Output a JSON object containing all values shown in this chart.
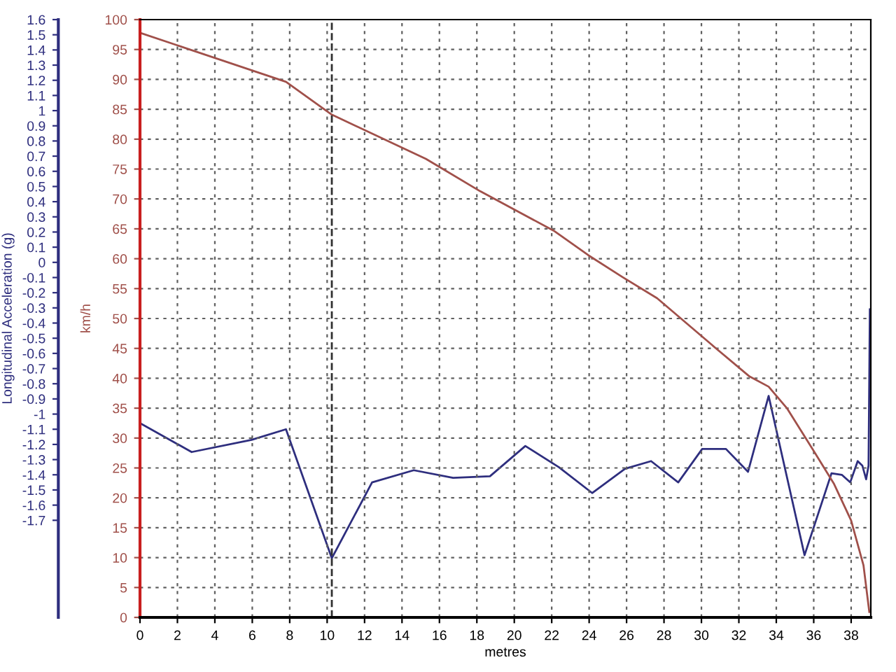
{
  "chart_data": {
    "type": "line",
    "xlabel": "metres",
    "ylabel": "km/h",
    "y2label": "Longitudinal Acceleration (g)",
    "xlim": [
      0,
      39.05
    ],
    "xticks": [
      0,
      2,
      4,
      6,
      8,
      10,
      12,
      14,
      16,
      18,
      20,
      22,
      24,
      26,
      28,
      30,
      32,
      34,
      36,
      38
    ],
    "ylim": [
      0,
      100
    ],
    "yticks": [
      0,
      5,
      10,
      15,
      20,
      25,
      30,
      35,
      40,
      45,
      50,
      55,
      60,
      65,
      70,
      75,
      80,
      85,
      90,
      95,
      100
    ],
    "y2lim": [
      -2.34,
      1.6
    ],
    "y2ticks": [
      -1.7,
      -1.6,
      -1.5,
      -1.4,
      -1.3,
      -1.2,
      -1.1,
      -1,
      -0.9,
      -0.8,
      -0.7,
      -0.6,
      -0.5,
      -0.4,
      -0.3,
      -0.2,
      -0.1,
      0,
      0.1,
      0.2,
      0.3,
      0.4,
      0.5,
      0.6,
      0.7,
      0.8,
      0.9,
      1,
      1.1,
      1.2,
      1.3,
      1.4,
      1.5,
      1.6
    ],
    "grid": true,
    "marker": "none",
    "line_style": "solid",
    "ref_lines": [
      {
        "axis": "x",
        "value": 10.25,
        "color": "#303030",
        "line_style": "dashed"
      }
    ],
    "series": [
      {
        "color": "#a0504a",
        "x": [
          0,
          7.8,
          10.25,
          15.28,
          18.17,
          22.1,
          23.95,
          25.8,
          27.63,
          30.78,
          32.57,
          33.59,
          34.59,
          36.03,
          37.09,
          38.0,
          38.66,
          38.97
        ],
        "values": [
          97.8,
          89.6,
          84.1,
          76.7,
          71.3,
          64.7,
          60.6,
          56.9,
          53.4,
          45.0,
          40.3,
          38.6,
          34.9,
          27.7,
          22.3,
          16.2,
          8.7,
          0.9
        ]
      },
      {
        "color": "#2e2e7e",
        "axis": "y2",
        "x": [
          0,
          2.76,
          5.96,
          7.8,
          10.25,
          12.4,
          14.63,
          16.73,
          18.7,
          20.59,
          22.38,
          24.16,
          25.92,
          27.31,
          28.76,
          30.04,
          31.31,
          32.49,
          33.59,
          35.51,
          36.95,
          37.5,
          37.95,
          38.35,
          38.6,
          38.8,
          38.93,
          39.0
        ],
        "values": [
          -1.06,
          -1.25,
          -1.17,
          -1.1,
          -1.95,
          -1.45,
          -1.37,
          -1.42,
          -1.41,
          -1.21,
          -1.35,
          -1.52,
          -1.36,
          -1.31,
          -1.45,
          -1.23,
          -1.23,
          -1.38,
          -0.88,
          -1.93,
          -1.39,
          -1.4,
          -1.45,
          -1.31,
          -1.34,
          -1.43,
          -1.34,
          -0.31
        ]
      }
    ]
  }
}
